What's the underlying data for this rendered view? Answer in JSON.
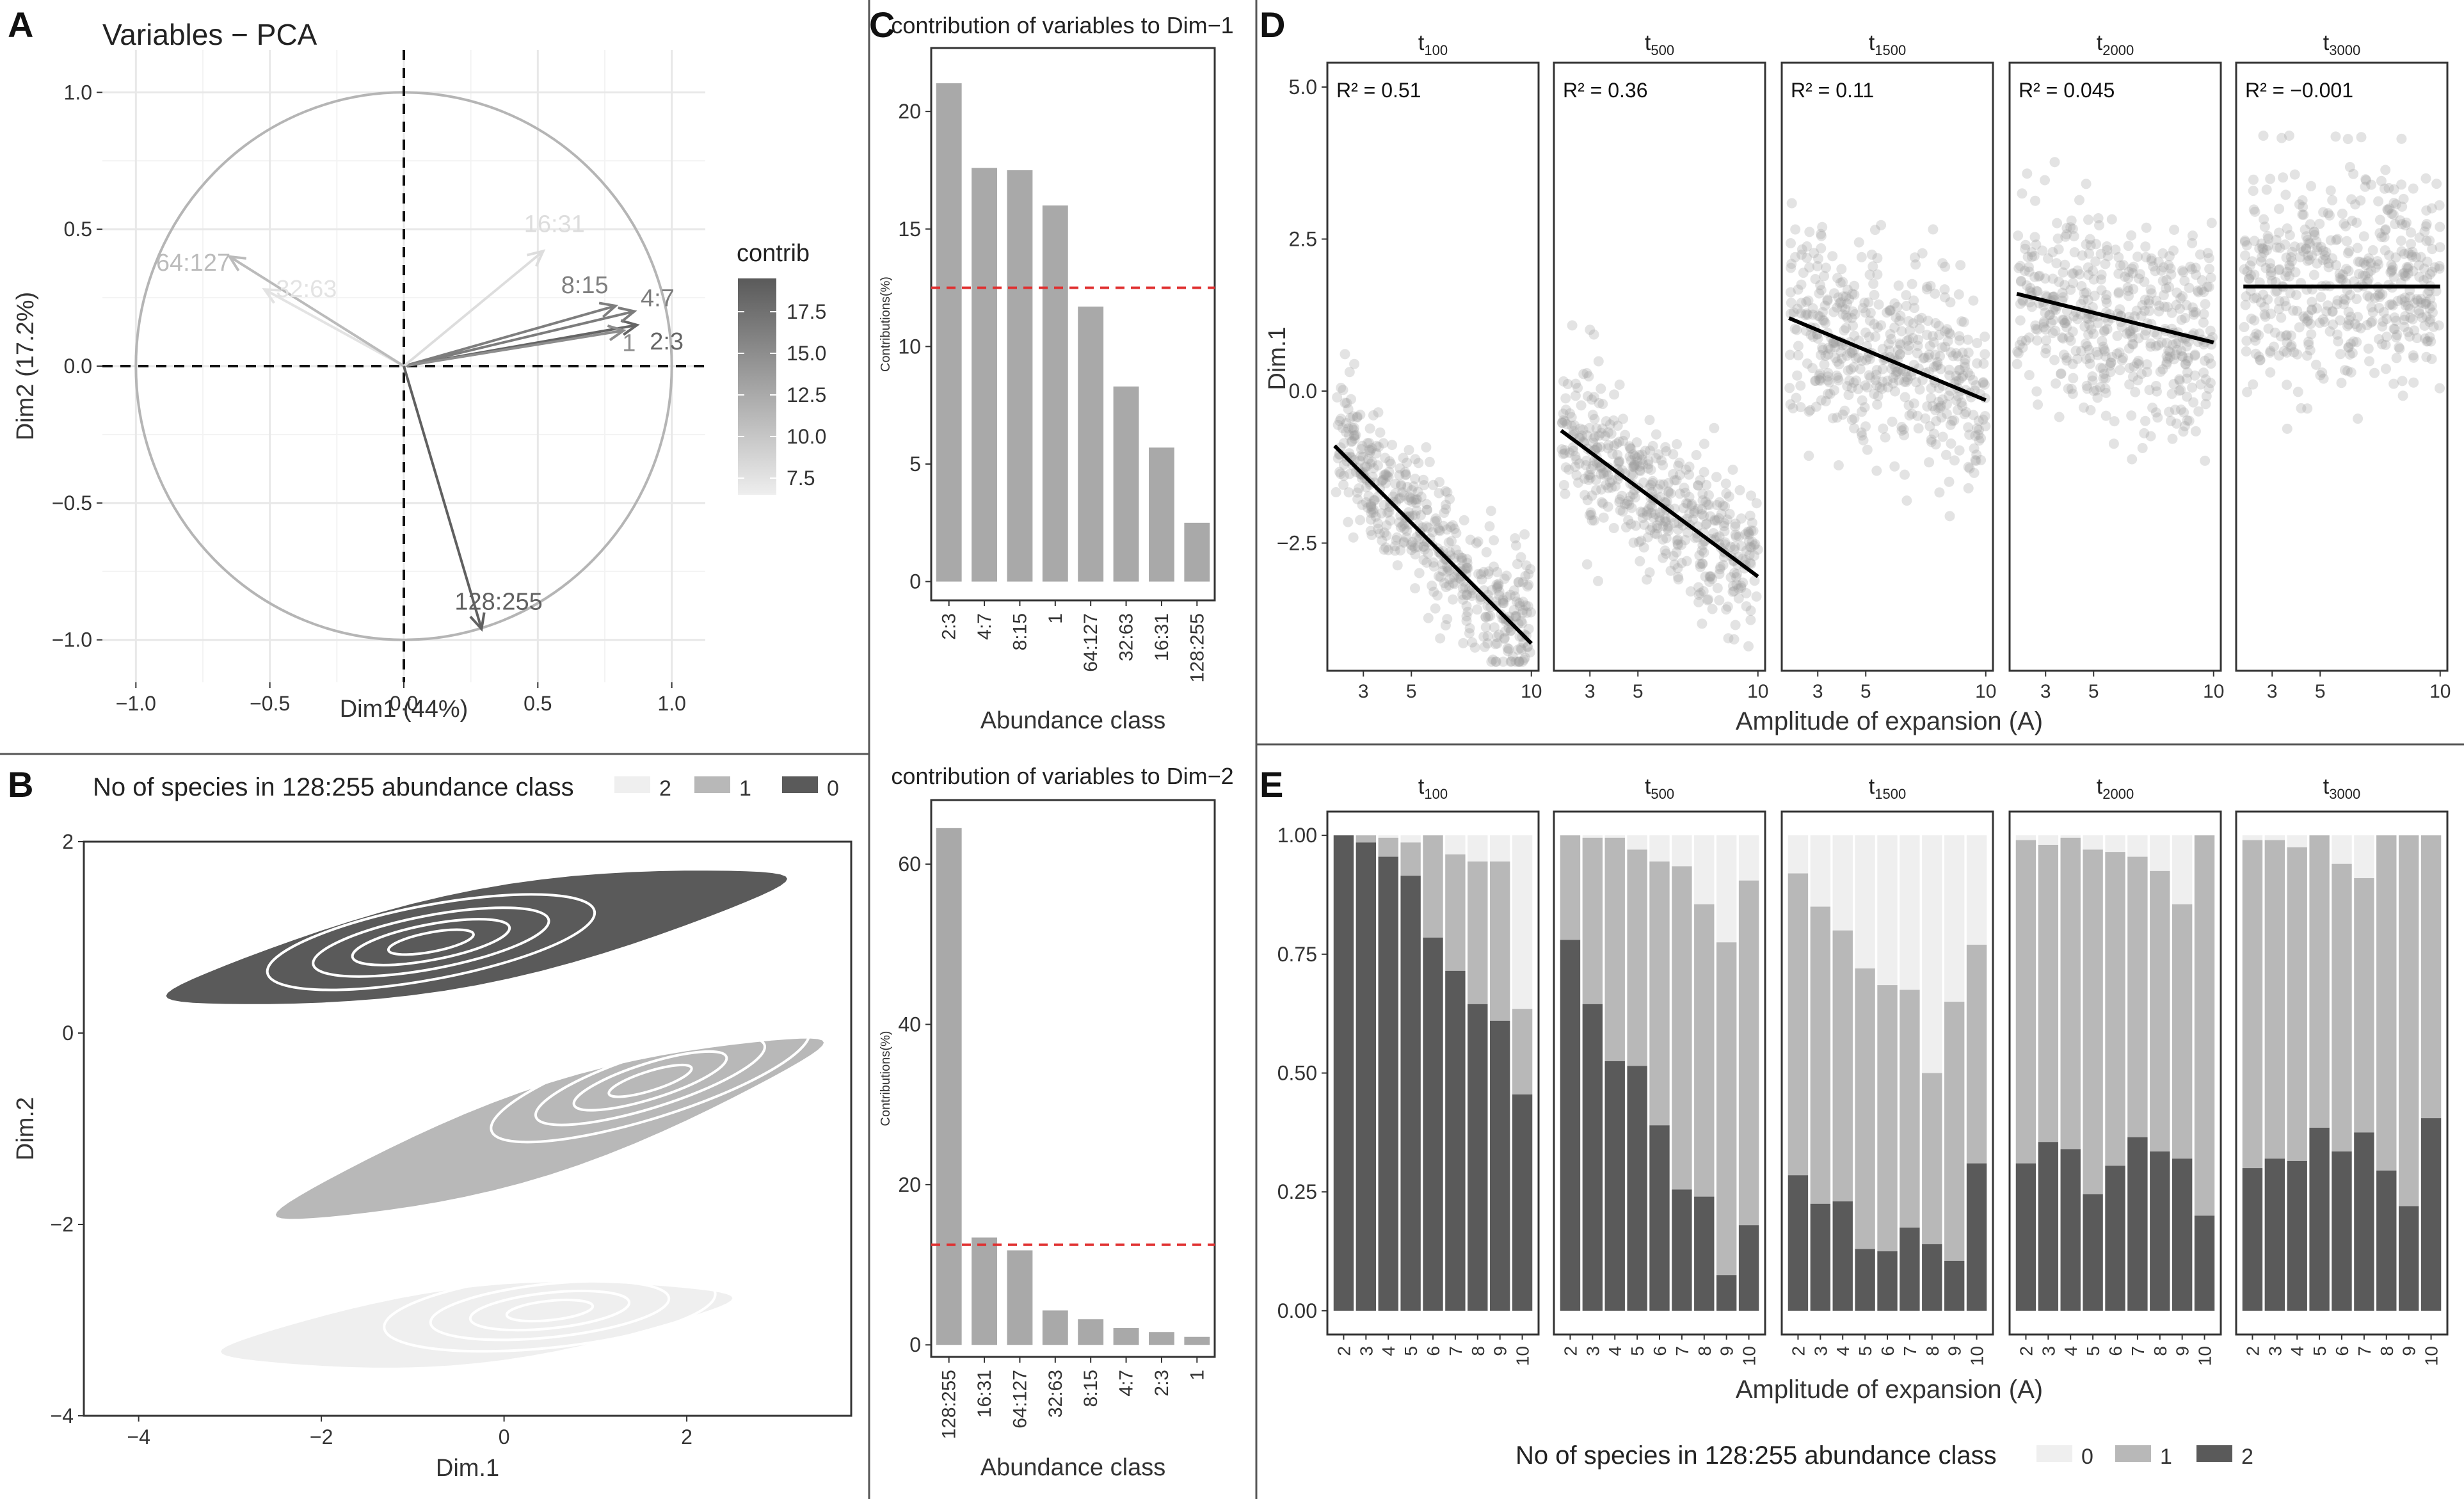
{
  "panel_labels": {
    "a": "A",
    "b": "B",
    "c": "C",
    "d": "D",
    "e": "E"
  },
  "chart_data": [
    {
      "id": "A",
      "type": "scatter",
      "title": "Variables − PCA",
      "xlabel": "Dim1 (44%)",
      "ylabel": "Dim2 (17.2%)",
      "xlim": [
        -1.0,
        1.0
      ],
      "ylim": [
        -1.0,
        1.0
      ],
      "xticks": [
        -1.0,
        -0.5,
        0.0,
        0.5,
        1.0
      ],
      "yticks": [
        -1.0,
        -0.5,
        0.0,
        0.5,
        1.0
      ],
      "tick_labels_x": [
        "−1.0",
        "−0.5",
        "0.0",
        "0.5",
        "1.0"
      ],
      "tick_labels_y": [
        "−1.0",
        "−0.5",
        "0.0",
        "0.5",
        "1.0"
      ],
      "legend": {
        "title": "contrib",
        "ticks": [
          17.5,
          15.0,
          12.5,
          10.0,
          7.5
        ],
        "tick_labels": [
          "17.5",
          "15.0",
          "12.5",
          "10.0",
          "7.5"
        ],
        "range": [
          6.5,
          19.5
        ]
      },
      "arrows": [
        {
          "label": "2:3",
          "x": 0.87,
          "y": 0.15,
          "contrib": 18.5
        },
        {
          "label": "4:7",
          "x": 0.86,
          "y": 0.2,
          "contrib": 16.5
        },
        {
          "label": "8:15",
          "x": 0.79,
          "y": 0.22,
          "contrib": 16.3
        },
        {
          "label": "1",
          "x": 0.82,
          "y": 0.13,
          "contrib": 15.0
        },
        {
          "label": "16:31",
          "x": 0.52,
          "y": 0.42,
          "contrib": 8.0
        },
        {
          "label": "32:63",
          "x": -0.52,
          "y": 0.28,
          "contrib": 7.5
        },
        {
          "label": "64:127",
          "x": -0.65,
          "y": 0.4,
          "contrib": 11.0
        },
        {
          "label": "128:255",
          "x": 0.29,
          "y": -0.96,
          "contrib": 19.0
        }
      ]
    },
    {
      "id": "B",
      "type": "area",
      "title": "No of species in 128:255 abundance class",
      "xlabel": "Dim.1",
      "ylabel": "Dim.2",
      "xlim": [
        -4.6,
        3.8
      ],
      "ylim": [
        -4.0,
        2.0
      ],
      "xticks": [
        -4,
        -2,
        0,
        2
      ],
      "yticks": [
        -4,
        -2,
        0,
        2
      ],
      "tick_labels_x": [
        "−4",
        "−2",
        "0",
        "2"
      ],
      "tick_labels_y": [
        "−4",
        "−2",
        "0",
        "2"
      ],
      "legend_items": [
        "2",
        "1",
        "0"
      ],
      "legend_colors": [
        "#efefef",
        "#b8b8b8",
        "#5a5a5a"
      ],
      "groups": [
        {
          "name": "0",
          "color": "#5a5a5a",
          "center": [
            -0.3,
            1.0
          ],
          "slope": 0.18,
          "xlength": 6.8,
          "ythick": 0.5,
          "peak": [
            -0.8,
            0.95
          ]
        },
        {
          "name": "1",
          "color": "#b8b8b8",
          "center": [
            0.5,
            -1.0
          ],
          "slope": 0.3,
          "xlength": 6.0,
          "ythick": 0.48,
          "peak": [
            1.6,
            -0.5
          ]
        },
        {
          "name": "2",
          "color": "#efefef",
          "center": [
            -0.3,
            -3.05
          ],
          "slope": 0.1,
          "xlength": 5.6,
          "ythick": 0.4,
          "peak": [
            0.5,
            -2.9
          ]
        }
      ]
    },
    {
      "id": "C1",
      "type": "bar",
      "title": "contribution of variables to Dim−1",
      "xlabel": "Abundance class",
      "ylabel": "Contributions(%)",
      "categories": [
        "2:3",
        "4:7",
        "8:15",
        "1",
        "64:127",
        "32:63",
        "16:31",
        "128:255"
      ],
      "values": [
        21.2,
        17.6,
        17.5,
        16.0,
        11.7,
        8.3,
        5.7,
        2.5
      ],
      "reference_line": 12.5,
      "ylim": [
        -0.8,
        22.7
      ],
      "yticks": [
        0,
        5,
        10,
        15,
        20
      ],
      "tick_labels_y": [
        "0",
        "5",
        "10",
        "15",
        "20"
      ]
    },
    {
      "id": "C2",
      "type": "bar",
      "title": "contribution of variables to Dim−2",
      "xlabel": "Abundance class",
      "ylabel": "Contributions(%)",
      "categories": [
        "128:255",
        "16:31",
        "64:127",
        "32:63",
        "8:15",
        "4:7",
        "2:3",
        "1"
      ],
      "values": [
        64.5,
        13.4,
        11.8,
        4.3,
        3.2,
        2.1,
        1.6,
        1.0
      ],
      "reference_line": 12.5,
      "ylim": [
        -1.5,
        68.0
      ],
      "yticks": [
        0,
        20,
        40,
        60
      ],
      "tick_labels_y": [
        "0",
        "20",
        "40",
        "60"
      ]
    },
    {
      "id": "D",
      "type": "scatter",
      "xlabel": "Amplitude of expansion (A)",
      "ylabel": "Dim.1",
      "xlim": [
        1.5,
        10.3
      ],
      "ylim": [
        -4.6,
        5.4
      ],
      "xticks": [
        3,
        5,
        10
      ],
      "yticks": [
        -2.5,
        0.0,
        2.5,
        5.0
      ],
      "tick_labels_x": [
        "3",
        "5",
        "10"
      ],
      "tick_labels_y": [
        "−2.5",
        "0.0",
        "2.5",
        "5.0"
      ],
      "facets": [
        {
          "label": "t",
          "sub": "100",
          "r2": "R² =  0.51",
          "line": [
            [
              1.8,
              -0.9
            ],
            [
              10,
              -4.15
            ]
          ],
          "cloud": {
            "sd": 0.55,
            "curve": 0.15
          }
        },
        {
          "label": "t",
          "sub": "500",
          "r2": "R² =  0.36",
          "line": [
            [
              1.8,
              -0.65
            ],
            [
              10,
              -3.05
            ]
          ],
          "cloud": {
            "sd": 0.6,
            "curve": 0.12
          }
        },
        {
          "label": "t",
          "sub": "1500",
          "r2": "R² =  0.11",
          "line": [
            [
              1.8,
              1.2
            ],
            [
              10,
              -0.15
            ]
          ],
          "cloud": {
            "sd": 0.8,
            "curve": 0.05
          }
        },
        {
          "label": "t",
          "sub": "2000",
          "r2": "R² =  0.045",
          "line": [
            [
              1.8,
              1.6
            ],
            [
              10,
              0.8
            ]
          ],
          "cloud": {
            "sd": 0.85,
            "curve": 0.02
          }
        },
        {
          "label": "t",
          "sub": "3000",
          "r2": "R² =  −0.001",
          "line": [
            [
              1.8,
              1.72
            ],
            [
              10,
              1.72
            ]
          ],
          "cloud": {
            "sd": 0.85,
            "curve": 0.0
          }
        }
      ]
    },
    {
      "id": "E",
      "type": "bar",
      "xlabel": "Amplitude of expansion (A)",
      "categories": [
        "2",
        "3",
        "4",
        "5",
        "6",
        "7",
        "8",
        "9",
        "10"
      ],
      "ylim": [
        0,
        1
      ],
      "yticks": [
        0.0,
        0.25,
        0.5,
        0.75,
        1.0
      ],
      "tick_labels_y": [
        "0.00",
        "0.25",
        "0.50",
        "0.75",
        "1.00"
      ],
      "legend_title": "No of species in 128:255 abundance class",
      "legend_items": [
        "0",
        "1",
        "2"
      ],
      "legend_colors": [
        "#efefef",
        "#b8b8b8",
        "#5a5a5a"
      ],
      "facets": [
        {
          "label": "t",
          "sub": "100",
          "two": [
            1.0,
            0.985,
            0.955,
            0.915,
            0.785,
            0.715,
            0.645,
            0.61,
            0.455
          ],
          "cum": [
            1.0,
            1.0,
            0.995,
            0.985,
            1.0,
            0.96,
            0.945,
            0.945,
            0.635
          ]
        },
        {
          "label": "t",
          "sub": "500",
          "two": [
            0.78,
            0.645,
            0.525,
            0.515,
            0.39,
            0.255,
            0.24,
            0.075,
            0.18
          ],
          "cum": [
            1.0,
            0.995,
            0.995,
            0.97,
            0.945,
            0.935,
            0.855,
            0.775,
            0.905
          ]
        },
        {
          "label": "t",
          "sub": "1500",
          "two": [
            0.285,
            0.225,
            0.23,
            0.13,
            0.125,
            0.175,
            0.14,
            0.105,
            0.31
          ],
          "cum": [
            0.92,
            0.85,
            0.8,
            0.72,
            0.685,
            0.675,
            0.5,
            0.65,
            0.77
          ]
        },
        {
          "label": "t",
          "sub": "2000",
          "two": [
            0.31,
            0.355,
            0.34,
            0.245,
            0.305,
            0.365,
            0.335,
            0.32,
            0.2
          ],
          "cum": [
            0.99,
            0.98,
            0.995,
            0.97,
            0.965,
            0.955,
            0.925,
            0.855,
            1.0
          ]
        },
        {
          "label": "t",
          "sub": "3000",
          "two": [
            0.3,
            0.32,
            0.315,
            0.385,
            0.335,
            0.375,
            0.295,
            0.22,
            0.405
          ],
          "cum": [
            0.99,
            0.99,
            0.975,
            1.0,
            0.94,
            0.91,
            1.0,
            1.0,
            1.0
          ]
        }
      ]
    }
  ]
}
